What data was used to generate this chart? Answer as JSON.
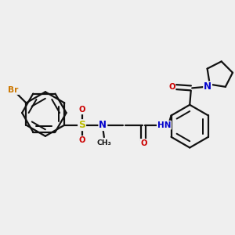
{
  "bg": "#efefef",
  "bond_color": "#111111",
  "bond_lw": 1.6,
  "atom_colors": {
    "Br": "#cc7700",
    "S": "#bbbb00",
    "N": "#0000cc",
    "O": "#cc0000",
    "C": "#111111",
    "H": "#558888"
  },
  "fs_large": 8.5,
  "fs_small": 7.2,
  "xlim": [
    0.0,
    10.0
  ],
  "ylim": [
    0.0,
    10.0
  ]
}
